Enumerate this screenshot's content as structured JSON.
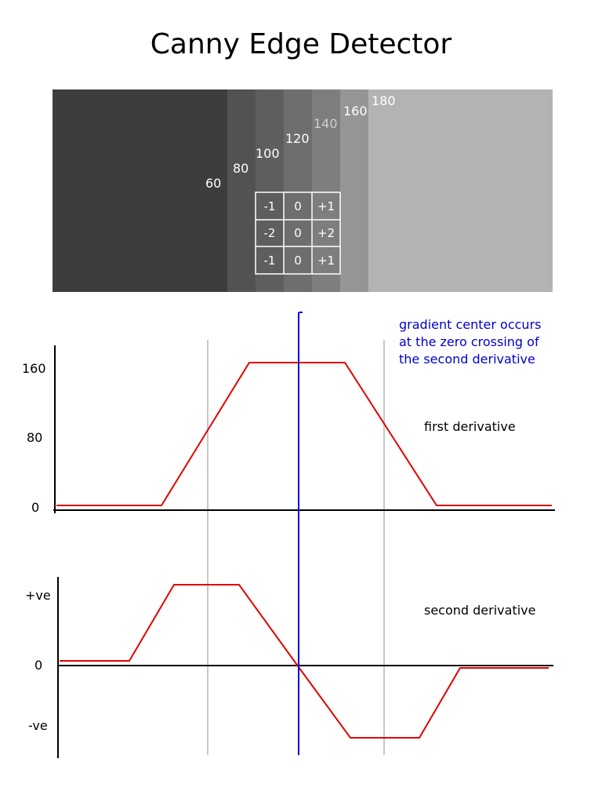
{
  "title": "Canny Edge Detector",
  "grayscale": {
    "bands": [
      {
        "value": "60",
        "color": "#3d3d3d"
      },
      {
        "value": "80",
        "color": "#525252"
      },
      {
        "value": "100",
        "color": "#5e5e5e"
      },
      {
        "value": "120",
        "color": "#6e6e6e"
      },
      {
        "value": "140",
        "color": "#7e7e7e"
      },
      {
        "value": "160",
        "color": "#959595"
      },
      {
        "value": "180",
        "color": "#b3b3b3"
      }
    ],
    "label_colors": [
      "#ffffff",
      "#ffffff",
      "#ffffff",
      "#ffffff",
      "#cfcfcf",
      "#ffffff",
      "#ffffff"
    ]
  },
  "kernel": [
    [
      "-1",
      "0",
      "+1"
    ],
    [
      "-2",
      "0",
      "+2"
    ],
    [
      "-1",
      "0",
      "+1"
    ]
  ],
  "first_derivative": {
    "label": "first derivative",
    "y_ticks": [
      "160",
      "80",
      "0"
    ],
    "line_color": "#e00000"
  },
  "second_derivative": {
    "label": "second derivative",
    "y_ticks": [
      "+ve",
      "0",
      "-ve"
    ],
    "line_color": "#e00000"
  },
  "annotation": {
    "lines": [
      "gradient center occurs",
      "at the zero crossing of",
      "the  second derivative"
    ],
    "color": "#0000cc"
  }
}
